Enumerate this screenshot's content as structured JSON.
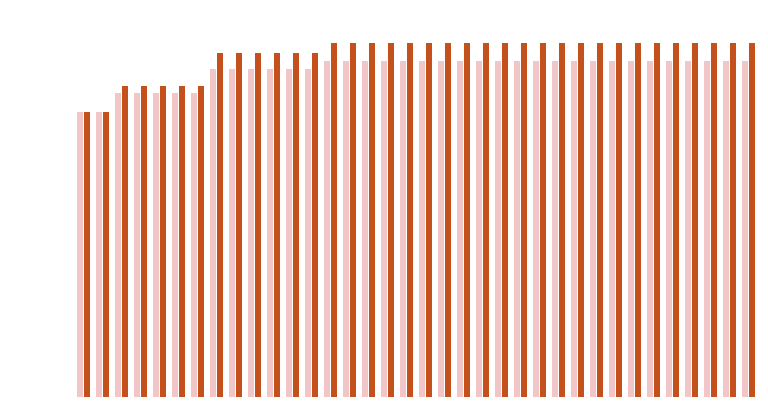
{
  "chart_data": {
    "type": "bar",
    "categories": [
      null,
      null,
      null,
      null,
      null,
      null,
      null,
      null,
      null,
      null,
      null,
      null,
      null,
      null,
      null,
      null,
      null,
      null,
      null,
      null,
      null,
      null,
      null,
      null,
      null,
      null,
      null,
      null,
      null,
      null,
      null,
      null,
      null,
      null,
      null,
      null
    ],
    "series": [
      {
        "color": "#f2c6c6",
        "values": [
          285,
          285,
          304,
          304,
          304,
          304,
          304,
          328,
          328,
          328,
          328,
          328,
          328,
          336,
          336,
          336,
          336,
          336,
          336,
          336,
          336,
          336,
          336,
          336,
          336,
          336,
          336,
          336,
          336,
          336,
          336,
          336,
          336,
          336,
          336,
          336
        ]
      },
      {
        "color": "#c4501c",
        "values": [
          285,
          285,
          311,
          311,
          311,
          311,
          311,
          344,
          344,
          344,
          344,
          344,
          344,
          354,
          354,
          354,
          354,
          354,
          354,
          354,
          354,
          354,
          354,
          354,
          354,
          354,
          354,
          354,
          354,
          354,
          354,
          354,
          354,
          354,
          354,
          354
        ]
      }
    ],
    "ylim": [
      0,
      360
    ]
  }
}
